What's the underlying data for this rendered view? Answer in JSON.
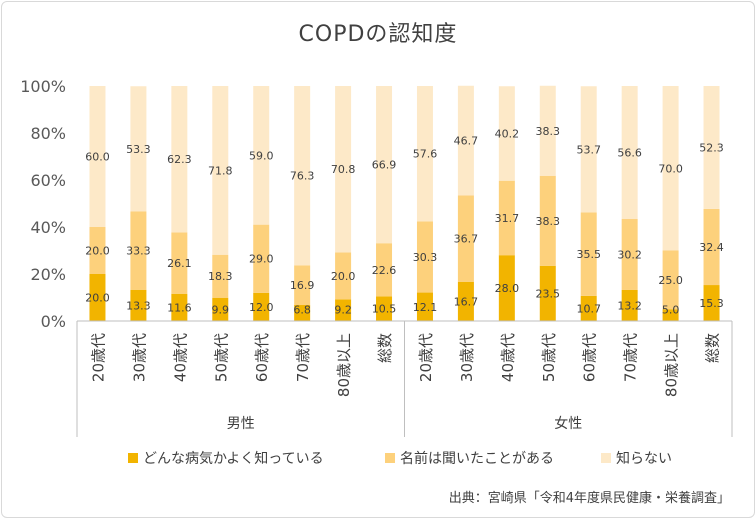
{
  "chart_data": {
    "type": "bar",
    "stacked": "percent",
    "title": "COPDの認知度",
    "yticks": [
      "0%",
      "20%",
      "40%",
      "60%",
      "80%",
      "100%"
    ],
    "ylim": [
      0,
      100
    ],
    "grid": false,
    "legend_position": "bottom",
    "groups": [
      {
        "name": "男性",
        "categories": [
          "20歳代",
          "30歳代",
          "40歳代",
          "50歳代",
          "60歳代",
          "70歳代",
          "80歳以上",
          "総数"
        ]
      },
      {
        "name": "女性",
        "categories": [
          "20歳代",
          "30歳代",
          "40歳代",
          "50歳代",
          "60歳代",
          "70歳代",
          "80歳以上",
          "総数"
        ]
      }
    ],
    "series": [
      {
        "name": "どんな病気かよく知っている",
        "color": "#f2b400",
        "values": [
          20.0,
          13.3,
          11.6,
          9.9,
          12.0,
          6.8,
          9.2,
          10.5,
          12.1,
          16.7,
          28.0,
          23.5,
          10.7,
          13.2,
          5.0,
          15.3
        ],
        "labels": [
          "20.0",
          "13.3",
          "11.6",
          "9.9",
          "12.0",
          "6.8",
          "9.2",
          "10.5",
          "12.1",
          "16.7",
          "28.0",
          "23.5",
          "10.7",
          "13.2",
          "5.0",
          "15.3"
        ]
      },
      {
        "name": "名前は聞いたことがある",
        "color": "#fdd17c",
        "values": [
          20.0,
          33.3,
          26.1,
          18.3,
          29.0,
          16.9,
          20.0,
          22.6,
          30.3,
          36.7,
          31.7,
          38.3,
          35.5,
          30.2,
          25.0,
          32.4
        ],
        "labels": [
          "20.0",
          "33.3",
          "26.1",
          "18.3",
          "29.0",
          "16.9",
          "20.0",
          "22.6",
          "30.3",
          "36.7",
          "31.7",
          "38.3",
          "35.5",
          "30.2",
          "25.0",
          "32.4"
        ]
      },
      {
        "name": "知らない",
        "color": "#fde9c8",
        "values": [
          60.0,
          53.3,
          62.3,
          71.8,
          59.0,
          76.3,
          70.8,
          66.9,
          57.6,
          46.7,
          40.2,
          38.3,
          53.7,
          56.6,
          70.0,
          52.3
        ],
        "labels": [
          "60.0",
          "53.3",
          "62.3",
          "71.8",
          "59.0",
          "76.3",
          "70.8",
          "66.9",
          "57.6",
          "46.7",
          "40.2",
          "38.3",
          "53.7",
          "56.6",
          "70.0",
          "52.3"
        ]
      }
    ]
  },
  "source": "出典：宮崎県「令和4年度県民健康・栄養調査」"
}
